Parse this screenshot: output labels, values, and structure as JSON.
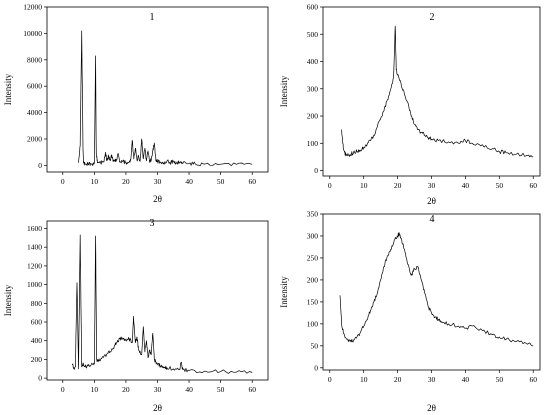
{
  "chart_data": [
    {
      "type": "line",
      "title": "1",
      "xlabel": "2θ",
      "ylabel": "Intensity",
      "xlim": [
        -5,
        65
      ],
      "ylim": [
        -500,
        12000
      ],
      "xticks": [
        0,
        10,
        20,
        30,
        40,
        50,
        60
      ],
      "yticks": [
        0,
        2000,
        4000,
        6000,
        8000,
        10000,
        12000
      ],
      "grid": false,
      "series": [
        {
          "x": [
            5,
            5.5,
            6,
            6.4,
            6.6,
            7,
            8,
            9,
            10,
            10.4,
            10.6,
            11,
            12,
            13,
            13.5,
            14,
            14.5,
            15,
            15.5,
            16,
            16.5,
            17,
            17.5,
            18,
            19,
            20,
            21,
            21.5,
            22,
            22.5,
            23,
            23.5,
            24,
            24.5,
            25,
            25.5,
            26,
            26.5,
            27,
            27.5,
            28,
            28.5,
            29,
            29.5,
            30,
            31,
            32,
            33,
            34,
            35,
            36,
            37,
            38,
            40,
            42,
            45,
            50,
            55,
            60
          ],
          "y": [
            200,
            1500,
            10200,
            1200,
            200,
            120,
            100,
            100,
            160,
            8300,
            900,
            200,
            180,
            250,
            1000,
            350,
            700,
            400,
            800,
            300,
            300,
            450,
            900,
            250,
            300,
            200,
            250,
            400,
            1900,
            500,
            1300,
            400,
            700,
            300,
            2000,
            500,
            1300,
            350,
            1100,
            300,
            400,
            1100,
            1700,
            350,
            300,
            250,
            200,
            350,
            200,
            300,
            150,
            250,
            150,
            150,
            100,
            100,
            90,
            80,
            80
          ]
        }
      ]
    },
    {
      "type": "line",
      "title": "2",
      "xlabel": "2θ",
      "ylabel": "Intensity",
      "xlim": [
        -2,
        62
      ],
      "ylim": [
        -20,
        600
      ],
      "xticks": [
        0,
        10,
        20,
        30,
        40,
        50,
        60
      ],
      "yticks": [
        0,
        100,
        200,
        300,
        400,
        500,
        600
      ],
      "grid": false,
      "series": [
        {
          "x": [
            3.5,
            4,
            4.5,
            5,
            6,
            7,
            8,
            9,
            10,
            11,
            12,
            13,
            14,
            15,
            16,
            17,
            18,
            18.8,
            19.3,
            19.6,
            20,
            21,
            22,
            23,
            24,
            25,
            26,
            27,
            28,
            29,
            30,
            32,
            35,
            38,
            40,
            42,
            45,
            48,
            50,
            52,
            55,
            58,
            60
          ],
          "y": [
            150,
            80,
            60,
            55,
            60,
            65,
            70,
            75,
            85,
            95,
            110,
            130,
            160,
            190,
            220,
            260,
            300,
            340,
            530,
            370,
            350,
            320,
            280,
            250,
            200,
            170,
            150,
            140,
            130,
            120,
            115,
            110,
            105,
            100,
            110,
            100,
            95,
            80,
            70,
            65,
            60,
            55,
            50
          ]
        }
      ]
    },
    {
      "type": "line",
      "title": "3",
      "xlabel": "2θ",
      "ylabel": "Intensity",
      "xlim": [
        -5,
        65
      ],
      "ylim": [
        -20,
        1680
      ],
      "xticks": [
        0,
        10,
        20,
        30,
        40,
        50,
        60
      ],
      "yticks": [
        0,
        200,
        400,
        600,
        800,
        1000,
        1200,
        1400,
        1600
      ],
      "grid": false,
      "series": [
        {
          "x": [
            3,
            3.5,
            4,
            4.5,
            5,
            5.5,
            6,
            6.5,
            7,
            8,
            9,
            10,
            10.4,
            10.7,
            11,
            12,
            13,
            14,
            15,
            16,
            17,
            18,
            19,
            20,
            21,
            22,
            22.4,
            23,
            23.5,
            24,
            25,
            25.5,
            26,
            26.5,
            27,
            27.5,
            28,
            28.5,
            29,
            29.5,
            30,
            31,
            32,
            33,
            35,
            37,
            37.5,
            38,
            40,
            45,
            50,
            55,
            60
          ],
          "y": [
            150,
            110,
            120,
            1020,
            100,
            1530,
            120,
            160,
            120,
            130,
            140,
            150,
            1520,
            200,
            180,
            200,
            230,
            260,
            280,
            320,
            380,
            420,
            430,
            400,
            420,
            380,
            660,
            380,
            440,
            300,
            250,
            550,
            280,
            400,
            220,
            300,
            250,
            480,
            200,
            170,
            150,
            130,
            120,
            110,
            100,
            90,
            170,
            90,
            80,
            75,
            70,
            65,
            60
          ]
        }
      ]
    },
    {
      "type": "line",
      "title": "4",
      "xlabel": "2θ",
      "ylabel": "Intensity",
      "xlim": [
        -2,
        62
      ],
      "ylim": [
        -5,
        350
      ],
      "xticks": [
        0,
        10,
        20,
        30,
        40,
        50,
        60
      ],
      "yticks": [
        0,
        50,
        100,
        150,
        200,
        250,
        300,
        350
      ],
      "grid": false,
      "series": [
        {
          "x": [
            3,
            3.5,
            4,
            5,
            6,
            7,
            8,
            9,
            10,
            11,
            12,
            13,
            14,
            15,
            16,
            17,
            18,
            19,
            20,
            20.5,
            21,
            22,
            23,
            24,
            25,
            26,
            27,
            28,
            29,
            30,
            31,
            32,
            33,
            35,
            38,
            40,
            42,
            45,
            48,
            50,
            52,
            55,
            58,
            60
          ],
          "y": [
            165,
            100,
            80,
            65,
            60,
            62,
            70,
            80,
            95,
            110,
            130,
            150,
            170,
            200,
            230,
            255,
            270,
            290,
            300,
            305,
            295,
            270,
            235,
            210,
            225,
            230,
            200,
            170,
            140,
            125,
            115,
            110,
            105,
            100,
            95,
            90,
            95,
            85,
            75,
            70,
            65,
            60,
            55,
            50
          ]
        }
      ]
    }
  ]
}
